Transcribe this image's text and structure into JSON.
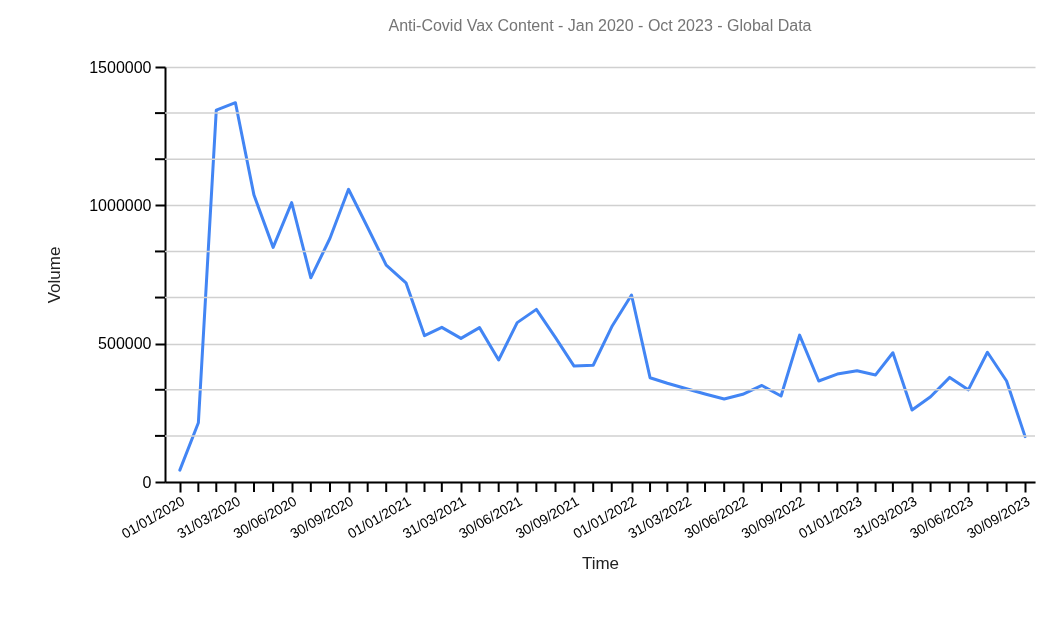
{
  "chart_data": {
    "type": "line",
    "title": "Anti-Covid Vax Content - Jan 2020 - Oct 2023 - Global Data",
    "xlabel": "Time",
    "ylabel": "Volume",
    "x": [
      "2020-01-01",
      "2020-01-31",
      "2020-02-29",
      "2020-03-31",
      "2020-04-30",
      "2020-05-31",
      "2020-06-30",
      "2020-07-31",
      "2020-08-31",
      "2020-09-30",
      "2020-10-31",
      "2020-11-30",
      "2021-01-01",
      "2021-01-31",
      "2021-02-28",
      "2021-03-31",
      "2021-04-30",
      "2021-05-31",
      "2021-06-30",
      "2021-07-31",
      "2021-08-31",
      "2021-09-30",
      "2021-10-31",
      "2021-11-30",
      "2022-01-01",
      "2022-01-31",
      "2022-02-28",
      "2022-03-31",
      "2022-04-30",
      "2022-05-31",
      "2022-06-30",
      "2022-07-31",
      "2022-08-31",
      "2022-09-30",
      "2022-10-31",
      "2022-11-30",
      "2023-01-01",
      "2023-01-31",
      "2023-02-28",
      "2023-03-31",
      "2023-04-30",
      "2023-05-31",
      "2023-06-30",
      "2023-07-31",
      "2023-08-31",
      "2023-09-30"
    ],
    "series": [
      {
        "color": "#4285f4",
        "values": [
          43000,
          214000,
          1344000,
          1371000,
          1037000,
          848000,
          1010000,
          738000,
          881000,
          1058000,
          920000,
          784000,
          720000,
          529000,
          559000,
          519000,
          558000,
          441000,
          576000,
          624000,
          522000,
          419000,
          422000,
          561000,
          676000,
          377000,
          357000,
          337000,
          318000,
          300000,
          317000,
          349000,
          311000,
          531000,
          365000,
          390000,
          402000,
          387000,
          467000,
          260000,
          308000,
          378000,
          333000,
          469000,
          365000,
          164000
        ]
      }
    ],
    "xlim": [
      "2019-12-08",
      "2023-10-16"
    ],
    "xticks": [
      {
        "value": "2020-01-01",
        "label": "01/01/2020"
      },
      {
        "value": "2020-01-31",
        "label": null
      },
      {
        "value": "2020-02-29",
        "label": null
      },
      {
        "value": "2020-03-31",
        "label": "31/03/2020"
      },
      {
        "value": "2020-04-30",
        "label": null
      },
      {
        "value": "2020-05-31",
        "label": null
      },
      {
        "value": "2020-06-30",
        "label": "30/06/2020"
      },
      {
        "value": "2020-07-31",
        "label": null
      },
      {
        "value": "2020-08-31",
        "label": null
      },
      {
        "value": "2020-09-30",
        "label": "30/09/2020"
      },
      {
        "value": "2020-10-31",
        "label": null
      },
      {
        "value": "2020-11-30",
        "label": null
      },
      {
        "value": "2021-01-01",
        "label": "01/01/2021"
      },
      {
        "value": "2021-01-31",
        "label": null
      },
      {
        "value": "2021-02-28",
        "label": null
      },
      {
        "value": "2021-03-31",
        "label": "31/03/2021"
      },
      {
        "value": "2021-04-30",
        "label": null
      },
      {
        "value": "2021-05-31",
        "label": null
      },
      {
        "value": "2021-06-30",
        "label": "30/06/2021"
      },
      {
        "value": "2021-07-31",
        "label": null
      },
      {
        "value": "2021-08-31",
        "label": null
      },
      {
        "value": "2021-09-30",
        "label": "30/09/2021"
      },
      {
        "value": "2021-10-31",
        "label": null
      },
      {
        "value": "2021-11-30",
        "label": null
      },
      {
        "value": "2022-01-01",
        "label": "01/01/2022"
      },
      {
        "value": "2022-01-31",
        "label": null
      },
      {
        "value": "2022-02-28",
        "label": null
      },
      {
        "value": "2022-03-31",
        "label": "31/03/2022"
      },
      {
        "value": "2022-04-30",
        "label": null
      },
      {
        "value": "2022-05-31",
        "label": null
      },
      {
        "value": "2022-06-30",
        "label": "30/06/2022"
      },
      {
        "value": "2022-07-31",
        "label": null
      },
      {
        "value": "2022-08-31",
        "label": null
      },
      {
        "value": "2022-09-30",
        "label": "30/09/2022"
      },
      {
        "value": "2022-10-31",
        "label": null
      },
      {
        "value": "2022-11-30",
        "label": null
      },
      {
        "value": "2023-01-01",
        "label": "01/01/2023"
      },
      {
        "value": "2023-01-31",
        "label": null
      },
      {
        "value": "2023-02-28",
        "label": null
      },
      {
        "value": "2023-03-31",
        "label": "31/03/2023"
      },
      {
        "value": "2023-04-30",
        "label": null
      },
      {
        "value": "2023-05-31",
        "label": null
      },
      {
        "value": "2023-06-30",
        "label": "30/06/2023"
      },
      {
        "value": "2023-07-31",
        "label": null
      },
      {
        "value": "2023-08-31",
        "label": null
      },
      {
        "value": "2023-09-30",
        "label": "30/09/2023"
      }
    ],
    "ylim": [
      0,
      1500000
    ],
    "yticks": [
      0,
      {
        "value": 166667,
        "label": null
      },
      {
        "value": 333333,
        "label": null
      },
      500000,
      {
        "value": 666667,
        "label": null
      },
      {
        "value": 833333,
        "label": null
      },
      1000000,
      {
        "value": 1166667,
        "label": null
      },
      {
        "value": 1333333,
        "label": null
      },
      1500000
    ],
    "grid": "y",
    "line_style": "solid",
    "marker": "none"
  }
}
